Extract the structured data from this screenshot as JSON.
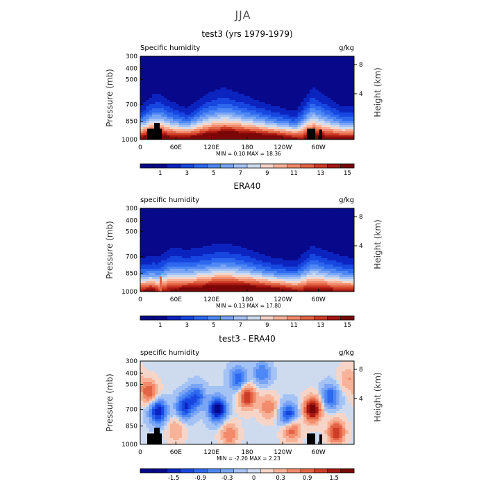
{
  "figure": {
    "title": "JJA"
  },
  "colors": {
    "abs": [
      "#08088a",
      "#0c24bf",
      "#1746e0",
      "#2d68ee",
      "#4e88f4",
      "#7aa5f5",
      "#a5c2f4",
      "#cedbef",
      "#f6d5c8",
      "#f8b298",
      "#f18b6c",
      "#e26445",
      "#cd3c26",
      "#a71812",
      "#7a0707"
    ],
    "diff": [
      "#08088a",
      "#0c24bf",
      "#1746e0",
      "#2d68ee",
      "#4e88f4",
      "#7aa5f5",
      "#a5c2f4",
      "#cedbef",
      "#f6d5c8",
      "#f8b298",
      "#f18b6c",
      "#e26445",
      "#cd3c26",
      "#a71812",
      "#7a0707"
    ],
    "land": "#000000"
  },
  "axes": {
    "ylabel": "Pressure (mb)",
    "y2label": "Height (km)",
    "pressure_ticks": [
      "300",
      "400",
      "500",
      "700",
      "850",
      "1000"
    ],
    "height_ticks": [
      "8",
      "4"
    ],
    "lon_ticks": [
      "0",
      "60E",
      "120E",
      "180",
      "120W",
      "60W"
    ]
  },
  "panels": [
    {
      "title": "test3 (yrs 1979-1979)",
      "var_label": "Specific humidity",
      "units": "g/kg",
      "min_max": "MIN =    0.10   MAX =   18.36",
      "colorbar_labels": [
        "1",
        "3",
        "5",
        "7",
        "9",
        "11",
        "13",
        "15"
      ]
    },
    {
      "title": "ERA40",
      "var_label": "specific humidity",
      "units": "g/kg",
      "min_max": "MIN =    0.13   MAX =   17.80",
      "colorbar_labels": [
        "1",
        "3",
        "5",
        "7",
        "9",
        "11",
        "13",
        "15"
      ]
    },
    {
      "title": "test3 - ERA40",
      "var_label": "specific humidity",
      "units": "g/kg",
      "min_max": "MIN =  -2.20   MAX =    2.23",
      "colorbar_labels": [
        "-1.5",
        "-0.9",
        "-0.3",
        "0",
        "0.3",
        "0.9",
        "1.5"
      ]
    }
  ],
  "chart_data": [
    {
      "type": "heatmap",
      "title": "test3 (yrs 1979-1979)",
      "variable": "Specific humidity",
      "units": "g/kg",
      "ylabel": "Pressure (mb)",
      "y2label": "Height (km)",
      "x_ticks": [
        "0",
        "60E",
        "120E",
        "180",
        "120W",
        "60W"
      ],
      "x_range_deg": [
        0,
        360
      ],
      "y_ticks_mb": [
        300,
        400,
        500,
        700,
        850,
        1000
      ],
      "height_ticks_km": [
        4,
        8
      ],
      "min": 0.1,
      "max": 18.36,
      "contour_levels": [
        0,
        1,
        2,
        3,
        4,
        5,
        6,
        7,
        8,
        9,
        10,
        11,
        12,
        13,
        14,
        15,
        16
      ],
      "colorbar_labels": [
        1,
        3,
        5,
        7,
        9,
        11,
        13,
        15
      ],
      "surface_q_by_lon": [
        [
          0,
          15
        ],
        [
          20,
          17
        ],
        [
          30,
          16
        ],
        [
          60,
          15
        ],
        [
          100,
          16
        ],
        [
          120,
          17
        ],
        [
          150,
          18
        ],
        [
          180,
          17.5
        ],
        [
          210,
          17
        ],
        [
          240,
          16
        ],
        [
          270,
          14
        ],
        [
          290,
          16
        ],
        [
          310,
          15
        ],
        [
          340,
          14.5
        ],
        [
          360,
          15
        ]
      ],
      "moist_depth_by_lon": [
        [
          0,
          0.3
        ],
        [
          30,
          0.55
        ],
        [
          50,
          0.4
        ],
        [
          80,
          0.25
        ],
        [
          110,
          0.5
        ],
        [
          140,
          0.6
        ],
        [
          180,
          0.45
        ],
        [
          220,
          0.3
        ],
        [
          260,
          0.2
        ],
        [
          290,
          0.65
        ],
        [
          310,
          0.5
        ],
        [
          340,
          0.3
        ],
        [
          360,
          0.3
        ]
      ]
    },
    {
      "type": "heatmap",
      "title": "ERA40",
      "variable": "specific humidity",
      "units": "g/kg",
      "ylabel": "Pressure (mb)",
      "y2label": "Height (km)",
      "x_ticks": [
        "0",
        "60E",
        "120E",
        "180",
        "120W",
        "60W"
      ],
      "x_range_deg": [
        0,
        360
      ],
      "y_ticks_mb": [
        300,
        400,
        500,
        700,
        850,
        1000
      ],
      "height_ticks_km": [
        4,
        8
      ],
      "min": 0.13,
      "max": 17.8,
      "contour_levels": [
        0,
        1,
        2,
        3,
        4,
        5,
        6,
        7,
        8,
        9,
        10,
        11,
        12,
        13,
        14,
        15,
        16
      ],
      "colorbar_labels": [
        1,
        3,
        5,
        7,
        9,
        11,
        13,
        15
      ],
      "surface_q_by_lon": [
        [
          0,
          14
        ],
        [
          20,
          15
        ],
        [
          30,
          13
        ],
        [
          60,
          15
        ],
        [
          100,
          16
        ],
        [
          120,
          17
        ],
        [
          150,
          17.5
        ],
        [
          180,
          17
        ],
        [
          210,
          16.5
        ],
        [
          240,
          15.5
        ],
        [
          270,
          14
        ],
        [
          290,
          15
        ],
        [
          310,
          14.5
        ],
        [
          340,
          14
        ],
        [
          360,
          14
        ]
      ],
      "moist_depth_by_lon": [
        [
          0,
          0.3
        ],
        [
          30,
          0.35
        ],
        [
          50,
          0.5
        ],
        [
          80,
          0.45
        ],
        [
          110,
          0.5
        ],
        [
          140,
          0.55
        ],
        [
          180,
          0.45
        ],
        [
          220,
          0.3
        ],
        [
          260,
          0.25
        ],
        [
          290,
          0.55
        ],
        [
          310,
          0.45
        ],
        [
          340,
          0.35
        ],
        [
          360,
          0.3
        ]
      ]
    },
    {
      "type": "heatmap",
      "title": "test3 - ERA40",
      "variable": "specific humidity",
      "units": "g/kg",
      "ylabel": "Pressure (mb)",
      "y2label": "Height (km)",
      "x_ticks": [
        "0",
        "60E",
        "120E",
        "180",
        "120W",
        "60W"
      ],
      "x_range_deg": [
        0,
        360
      ],
      "y_ticks_mb": [
        300,
        400,
        500,
        700,
        850,
        1000
      ],
      "height_ticks_km": [
        4,
        8
      ],
      "min": -2.2,
      "max": 2.23,
      "contour_levels": [
        -2.1,
        -1.8,
        -1.5,
        -1.2,
        -0.9,
        -0.6,
        -0.3,
        0,
        0.3,
        0.6,
        0.9,
        1.2,
        1.5,
        1.8,
        2.1
      ],
      "colorbar_labels": [
        -1.5,
        -0.9,
        -0.3,
        0,
        0.3,
        0.9,
        1.5
      ],
      "anomalies": [
        {
          "lon": 15,
          "p": 560,
          "value": 1.2
        },
        {
          "lon": 30,
          "p": 720,
          "value": -1.8
        },
        {
          "lon": 75,
          "p": 680,
          "value": -1.5
        },
        {
          "lon": 95,
          "p": 600,
          "value": -1.2
        },
        {
          "lon": 130,
          "p": 700,
          "value": -2.2
        },
        {
          "lon": 165,
          "p": 450,
          "value": -1.2
        },
        {
          "lon": 180,
          "p": 600,
          "value": 1.5
        },
        {
          "lon": 205,
          "p": 400,
          "value": -0.9
        },
        {
          "lon": 215,
          "p": 680,
          "value": 0.9
        },
        {
          "lon": 250,
          "p": 750,
          "value": -1.5
        },
        {
          "lon": 255,
          "p": 880,
          "value": 1.2
        },
        {
          "lon": 290,
          "p": 700,
          "value": 2.2
        },
        {
          "lon": 320,
          "p": 600,
          "value": -1.2
        },
        {
          "lon": 330,
          "p": 900,
          "value": 1.5
        },
        {
          "lon": 150,
          "p": 920,
          "value": 0.9
        },
        {
          "lon": 60,
          "p": 880,
          "value": 0.6
        },
        {
          "lon": 350,
          "p": 450,
          "value": 0.6
        }
      ]
    }
  ]
}
